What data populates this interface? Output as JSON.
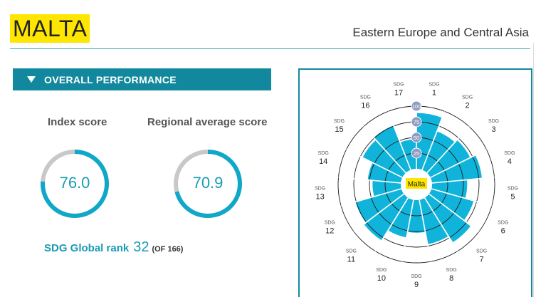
{
  "header": {
    "country": "MALTA",
    "region": "Eastern Europe and Central Asia"
  },
  "section": {
    "title": "OVERALL PERFORMANCE"
  },
  "scores": {
    "index_title": "Index score",
    "index_value": "76.0",
    "regional_title": "Regional average score",
    "regional_value": "70.9"
  },
  "rank": {
    "label": "SDG Global rank",
    "value": "32",
    "of": "(OF 166)"
  },
  "wheel": {
    "center_label": "Malta",
    "ring_labels": [
      "25",
      "50",
      "75",
      "100"
    ],
    "sdg_prefix": "SDG",
    "goal_scores": [
      89,
      66,
      71,
      80,
      56,
      70,
      84,
      72,
      52,
      61,
      80,
      76,
      45,
      53,
      71,
      76,
      47
    ],
    "colors": {
      "fill": "#10b4da",
      "accent": "#12889e",
      "ring_badge": "#8f9cc4",
      "highlight": "#ffe600",
      "gauge_track": "#c8c8c8"
    }
  }
}
